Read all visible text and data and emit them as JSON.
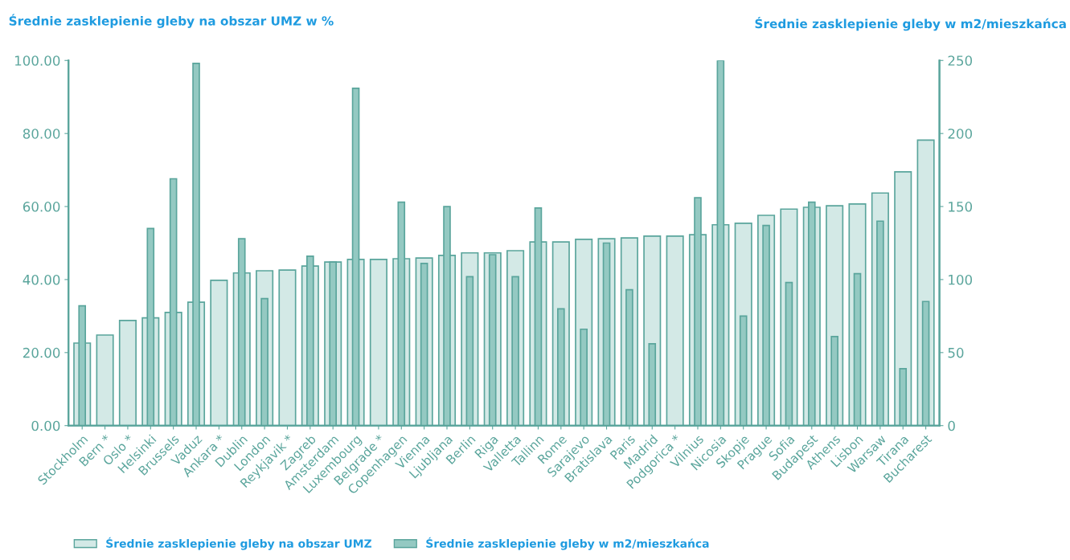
{
  "chart_data": {
    "type": "bar",
    "ylabel": "Średnie zasklepienie gleby na obszar UMZ w %",
    "y2label": "Średnie zasklepienie gleby w m2/mieszkańca",
    "categories": [
      "Stockholm",
      "Bern *",
      "Oslo *",
      "Helsinki",
      "Brussels",
      "Vaduz",
      "Ankara *",
      "Dublin",
      "London",
      "Reykjavik *",
      "Zagreb",
      "Amsterdam",
      "Luxembourg",
      "Belgrade *",
      "Copenhagen",
      "Vienna",
      "Ljubljana",
      "Berlin",
      "Riga",
      "Valletta",
      "Tallinn",
      "Rome",
      "Sarajevo",
      "Bratislava",
      "Paris",
      "Madrid",
      "Podgorica *",
      "Vilnius",
      "Nicosia",
      "Skopje",
      "Prague",
      "Sofia",
      "Budapest",
      "Athens",
      "Lisbon",
      "Warsaw",
      "Tirana",
      "Bucharest"
    ],
    "series": [
      {
        "name": "Średnie zasklepienie gleby na obszar UMZ",
        "color": "#d3e9e6",
        "values": [
          22.6,
          24.8,
          28.8,
          29.5,
          31.0,
          33.8,
          39.8,
          41.8,
          42.4,
          42.6,
          43.7,
          44.8,
          45.5,
          45.5,
          45.7,
          45.9,
          46.6,
          47.3,
          47.3,
          47.9,
          50.3,
          50.3,
          51.0,
          51.2,
          51.4,
          51.9,
          51.9,
          52.3,
          55.0,
          55.4,
          57.6,
          59.3,
          59.8,
          60.2,
          60.7,
          63.7,
          69.5,
          78.2
        ]
      },
      {
        "name": "Średnie zasklepienie gleby w m2/mieszkańca",
        "color": "#94c9c2",
        "axis": "y2",
        "values": [
          82,
          null,
          null,
          135,
          169,
          248,
          null,
          128,
          87,
          null,
          116,
          112,
          231,
          null,
          153,
          111,
          150,
          102,
          117,
          102,
          149,
          80,
          66,
          125,
          93,
          56,
          null,
          156,
          250,
          75,
          137,
          98,
          153,
          61,
          104,
          140,
          39,
          85
        ]
      }
    ],
    "ylim": [
      0,
      100
    ],
    "yticks": [
      {
        "value": 0,
        "label": "0.00"
      },
      {
        "value": 20,
        "label": "20.00"
      },
      {
        "value": 40,
        "label": "40.00"
      },
      {
        "value": 60,
        "label": "60.00"
      },
      {
        "value": 80,
        "label": "80.00"
      },
      {
        "value": 100,
        "label": "100.00"
      }
    ],
    "y2lim": [
      0,
      250
    ],
    "y2ticks": [
      0,
      50,
      100,
      150,
      200,
      250
    ],
    "grid": false,
    "legend": "bottom left"
  }
}
